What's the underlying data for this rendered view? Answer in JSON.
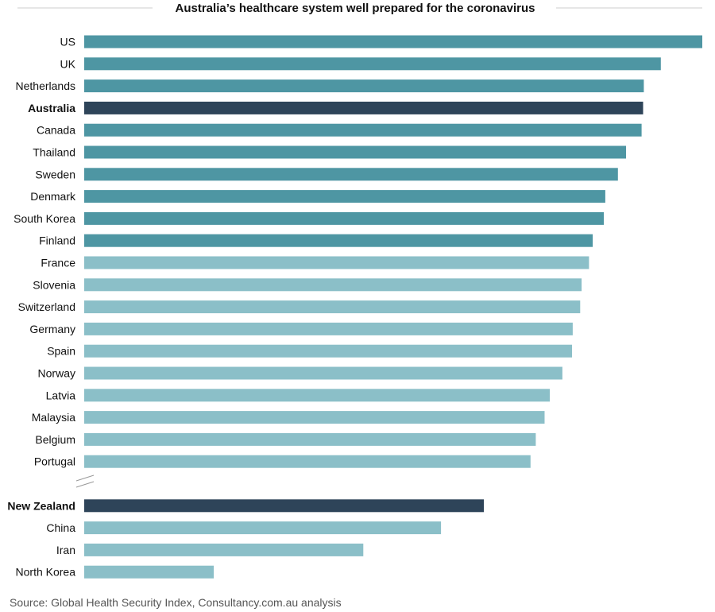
{
  "chart_data": {
    "type": "bar",
    "orientation": "horizontal",
    "title": "Australia’s healthcare system well prepared for the coronavirus",
    "source": "Source: Global Health Security Index, Consultancy.com.au analysis",
    "xlabel": "",
    "ylabel": "",
    "xlim": [
      0,
      83.5
    ],
    "axis_break_after": "Portugal",
    "colors": {
      "top": "#4e96a3",
      "highlight": "#2e4459",
      "other": "#8bbfc8",
      "title_rule": "#cccccc",
      "source": "#555555"
    },
    "bars": [
      {
        "label": "US",
        "value": 83.5,
        "group": "top"
      },
      {
        "label": "UK",
        "value": 77.9,
        "group": "top"
      },
      {
        "label": "Netherlands",
        "value": 75.6,
        "group": "top"
      },
      {
        "label": "Australia",
        "value": 75.5,
        "group": "highlight"
      },
      {
        "label": "Canada",
        "value": 75.3,
        "group": "top"
      },
      {
        "label": "Thailand",
        "value": 73.2,
        "group": "top"
      },
      {
        "label": "Sweden",
        "value": 72.1,
        "group": "top"
      },
      {
        "label": "Denmark",
        "value": 70.4,
        "group": "top"
      },
      {
        "label": "South Korea",
        "value": 70.2,
        "group": "top"
      },
      {
        "label": "Finland",
        "value": 68.7,
        "group": "top"
      },
      {
        "label": "France",
        "value": 68.2,
        "group": "other"
      },
      {
        "label": "Slovenia",
        "value": 67.2,
        "group": "other"
      },
      {
        "label": "Switzerland",
        "value": 67.0,
        "group": "other"
      },
      {
        "label": "Germany",
        "value": 66.0,
        "group": "other"
      },
      {
        "label": "Spain",
        "value": 65.9,
        "group": "other"
      },
      {
        "label": "Norway",
        "value": 64.6,
        "group": "other"
      },
      {
        "label": "Latvia",
        "value": 62.9,
        "group": "other"
      },
      {
        "label": "Malaysia",
        "value": 62.2,
        "group": "other"
      },
      {
        "label": "Belgium",
        "value": 61.0,
        "group": "other"
      },
      {
        "label": "Portugal",
        "value": 60.3,
        "group": "other"
      },
      {
        "label": "New Zealand",
        "value": 54.0,
        "group": "highlight"
      },
      {
        "label": "China",
        "value": 48.2,
        "group": "other"
      },
      {
        "label": "Iran",
        "value": 37.7,
        "group": "other"
      },
      {
        "label": "North Korea",
        "value": 17.5,
        "group": "other"
      }
    ]
  }
}
